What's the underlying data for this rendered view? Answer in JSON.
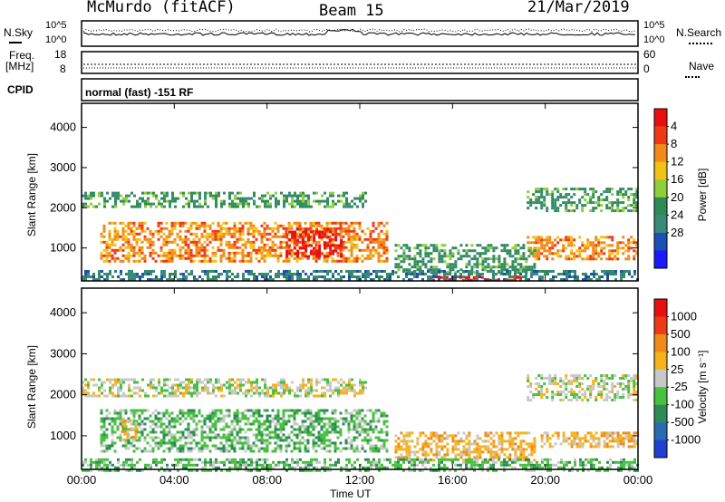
{
  "header": {
    "station": "McMurdo (fitACF)",
    "beam": "Beam 15",
    "date": "21/Mar/2019"
  },
  "status_panel": {
    "nsky_label": "N.Sky",
    "nsearch_label": "N.Search",
    "freq_label_line1": "Freq.",
    "freq_label_line2": "[MHz]",
    "nave_label": "Nave",
    "cpid_label": "CPID",
    "cpid_value": "normal (fast) -151 RF",
    "noise_left_ticks": [
      "10^5",
      "10^0"
    ],
    "noise_right_ticks": [
      "10^5",
      "10^0"
    ],
    "freq_ticks": [
      "18",
      "8"
    ],
    "nave_ticks": [
      "60",
      "0"
    ]
  },
  "chart_data": [
    {
      "type": "heatmap",
      "name": "power",
      "ylabel": "Slant Range [km]",
      "xlabel": "Time UT",
      "x_ticks": [
        "00:00",
        "04:00",
        "08:00",
        "12:00",
        "16:00",
        "20:00",
        "00:00"
      ],
      "x_range_hours": [
        0,
        24
      ],
      "y_ticks": [
        1000,
        2000,
        3000,
        4000
      ],
      "ylim": [
        180,
        4600
      ],
      "colorbar_label": "Power [dB]",
      "colorbar_ticks": [
        "4",
        "8",
        "12",
        "16",
        "20",
        "24",
        "28"
      ],
      "colors": [
        "#1a1aff",
        "#1e4fb4",
        "#3a8a7a",
        "#2e8b57",
        "#8fcf3a",
        "#f2c218",
        "#f08a18",
        "#ee3a16",
        "#e61010"
      ],
      "regions": [
        {
          "t0": 0.0,
          "t1": 12.2,
          "r0": 2000,
          "r1": 2400,
          "level": 3
        },
        {
          "t0": 19.2,
          "t1": 24.0,
          "r0": 1900,
          "r1": 2500,
          "level": 3
        },
        {
          "t0": 0.8,
          "t1": 13.2,
          "r0": 650,
          "r1": 1650,
          "level": 6
        },
        {
          "t0": 8.8,
          "t1": 11.2,
          "r0": 800,
          "r1": 1500,
          "level": 8
        },
        {
          "t0": 19.2,
          "t1": 24.0,
          "r0": 700,
          "r1": 1300,
          "level": 6
        },
        {
          "t0": 13.5,
          "t1": 19.5,
          "r0": 400,
          "r1": 1100,
          "level": 3
        },
        {
          "t0": 0.0,
          "t1": 24.0,
          "r0": 180,
          "r1": 450,
          "level": 2
        },
        {
          "t0": 15.0,
          "t1": 19.0,
          "r0": 180,
          "r1": 300,
          "level": 8
        }
      ]
    },
    {
      "type": "heatmap",
      "name": "velocity",
      "ylabel": "Slant Range [km]",
      "xlabel": "Time UT",
      "x_ticks": [
        "00:00",
        "04:00",
        "08:00",
        "12:00",
        "16:00",
        "20:00",
        "00:00"
      ],
      "x_range_hours": [
        0,
        24
      ],
      "y_ticks": [
        1000,
        2000,
        3000,
        4000
      ],
      "ylim": [
        180,
        4600
      ],
      "colorbar_label": "Velocity [m s⁻¹]",
      "colorbar_ticks": [
        "1000",
        "500",
        "100",
        "25",
        "-25",
        "-100",
        "-500",
        "-1000"
      ],
      "colors": [
        "#1f3fd0",
        "#2a6ab0",
        "#2e8b57",
        "#48c040",
        "#c8c8c8",
        "#f6b21c",
        "#f08a18",
        "#ee3a16",
        "#e61010"
      ],
      "regions": [
        {
          "t0": 0.0,
          "t1": 12.2,
          "r0": 2000,
          "r1": 2400,
          "level": 4
        },
        {
          "t0": 19.2,
          "t1": 24.0,
          "r0": 1900,
          "r1": 2500,
          "level": 4
        },
        {
          "t0": 0.8,
          "t1": 13.2,
          "r0": 650,
          "r1": 1650,
          "level": 3
        },
        {
          "t0": 1.7,
          "t1": 2.3,
          "r0": 900,
          "r1": 1400,
          "level": 5
        },
        {
          "t0": 19.8,
          "t1": 24.0,
          "r0": 750,
          "r1": 1100,
          "level": 5
        },
        {
          "t0": 13.5,
          "t1": 19.5,
          "r0": 400,
          "r1": 1100,
          "level": 5
        },
        {
          "t0": 0.0,
          "t1": 24.0,
          "r0": 180,
          "r1": 450,
          "level": 3
        }
      ]
    }
  ]
}
